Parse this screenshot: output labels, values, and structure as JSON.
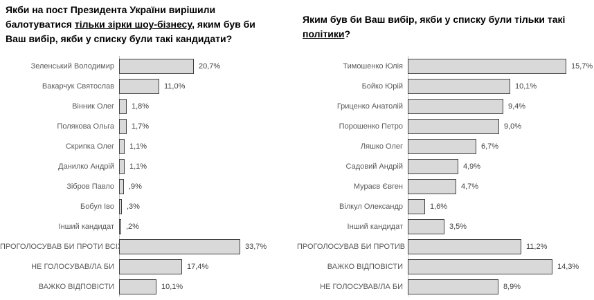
{
  "page": {
    "background": "#ffffff",
    "bar_fill": "#d9d9d9",
    "bar_border": "#404040",
    "axis_line_color": "#bfbfbf",
    "title_color": "#000000",
    "category_label_color": "#595959",
    "value_label_color": "#404040"
  },
  "chart_data": [
    {
      "type": "bar",
      "orientation": "horizontal",
      "title": "Якби на пост Президента України вирішили балотуватися тільки зірки шоу-бізнесу, яким був би Ваш вибір, якби у списку були такі кандидати?",
      "title_underlined_phrase": "тільки зірки шоу-бізнесу",
      "title_lines": [
        [
          {
            "t": "Якби на пост Президента України вирішили",
            "u": false
          }
        ],
        [
          {
            "t": "балотуватися ",
            "u": false
          },
          {
            "t": "тільки зірки шоу-бізнесу",
            "u": true
          },
          {
            "t": ", яким був би",
            "u": false
          }
        ],
        [
          {
            "t": "Ваш вибір, якби у списку були такі кандидати?",
            "u": false
          }
        ]
      ],
      "categories": [
        "Зеленський Володимир",
        "Вакарчук Святослав",
        "Вінник Олег",
        "Полякова Ольга",
        "Скрипка Олег",
        "Данилко Андрій",
        "Зібров Павло",
        "Бобул Іво",
        "Інший кандидат",
        "ПРОГОЛОСУВАВ БИ ПРОТИ ВСІХ",
        "НЕ ГОЛОСУВАВ/ЛА БИ",
        "ВАЖКО ВІДПОВІСТИ"
      ],
      "values": [
        20.7,
        11.0,
        1.8,
        1.7,
        1.1,
        1.1,
        0.9,
        0.3,
        0.2,
        33.7,
        17.4,
        10.1
      ],
      "value_labels": [
        "20,7%",
        "11,0%",
        "1,8%",
        "1,7%",
        "1,1%",
        "1,1%",
        ",9%",
        ",3%",
        ",2%",
        "33,7%",
        "17,4%",
        "10,1%"
      ],
      "xlabel": "",
      "ylabel": "",
      "xlim": [
        0,
        33.7
      ],
      "grid": false,
      "legend": false
    },
    {
      "type": "bar",
      "orientation": "horizontal",
      "title": "Яким був би Ваш вибір, якби у списку були тільки такі політики?",
      "title_underlined_phrase": "політики",
      "title_lines": [
        [
          {
            "t": "Яким був би Ваш вибір, якби у списку були тільки такі",
            "u": false
          }
        ],
        [
          {
            "t": "політики",
            "u": true
          },
          {
            "t": "?",
            "u": false
          }
        ]
      ],
      "categories": [
        "Тимошенко Юлія",
        "Бойко Юрій",
        "Гриценко Анатолій",
        "Порошенко Петро",
        "Ляшко Олег",
        "Садовий Андрій",
        "Мураєв Євген",
        "Вілкул Олександр",
        "Інший кандидат",
        "ПРОГОЛОСУВАВ БИ ПРОТИВ ВСІХ",
        "ВАЖКО ВІДПОВІСТИ",
        "НЕ ГОЛОСУВАВ/ЛА БИ"
      ],
      "values": [
        15.7,
        10.1,
        9.4,
        9.0,
        6.7,
        4.9,
        4.7,
        1.6,
        3.5,
        11.2,
        14.3,
        8.9
      ],
      "value_labels": [
        "15,7%",
        "10,1%",
        "9,4%",
        "9,0%",
        "6,7%",
        "4,9%",
        "4,7%",
        "1,6%",
        "3,5%",
        "11,2%",
        "14,3%",
        "8,9%"
      ],
      "xlabel": "",
      "ylabel": "",
      "xlim": [
        0,
        15.7
      ],
      "grid": false,
      "legend": false
    }
  ]
}
